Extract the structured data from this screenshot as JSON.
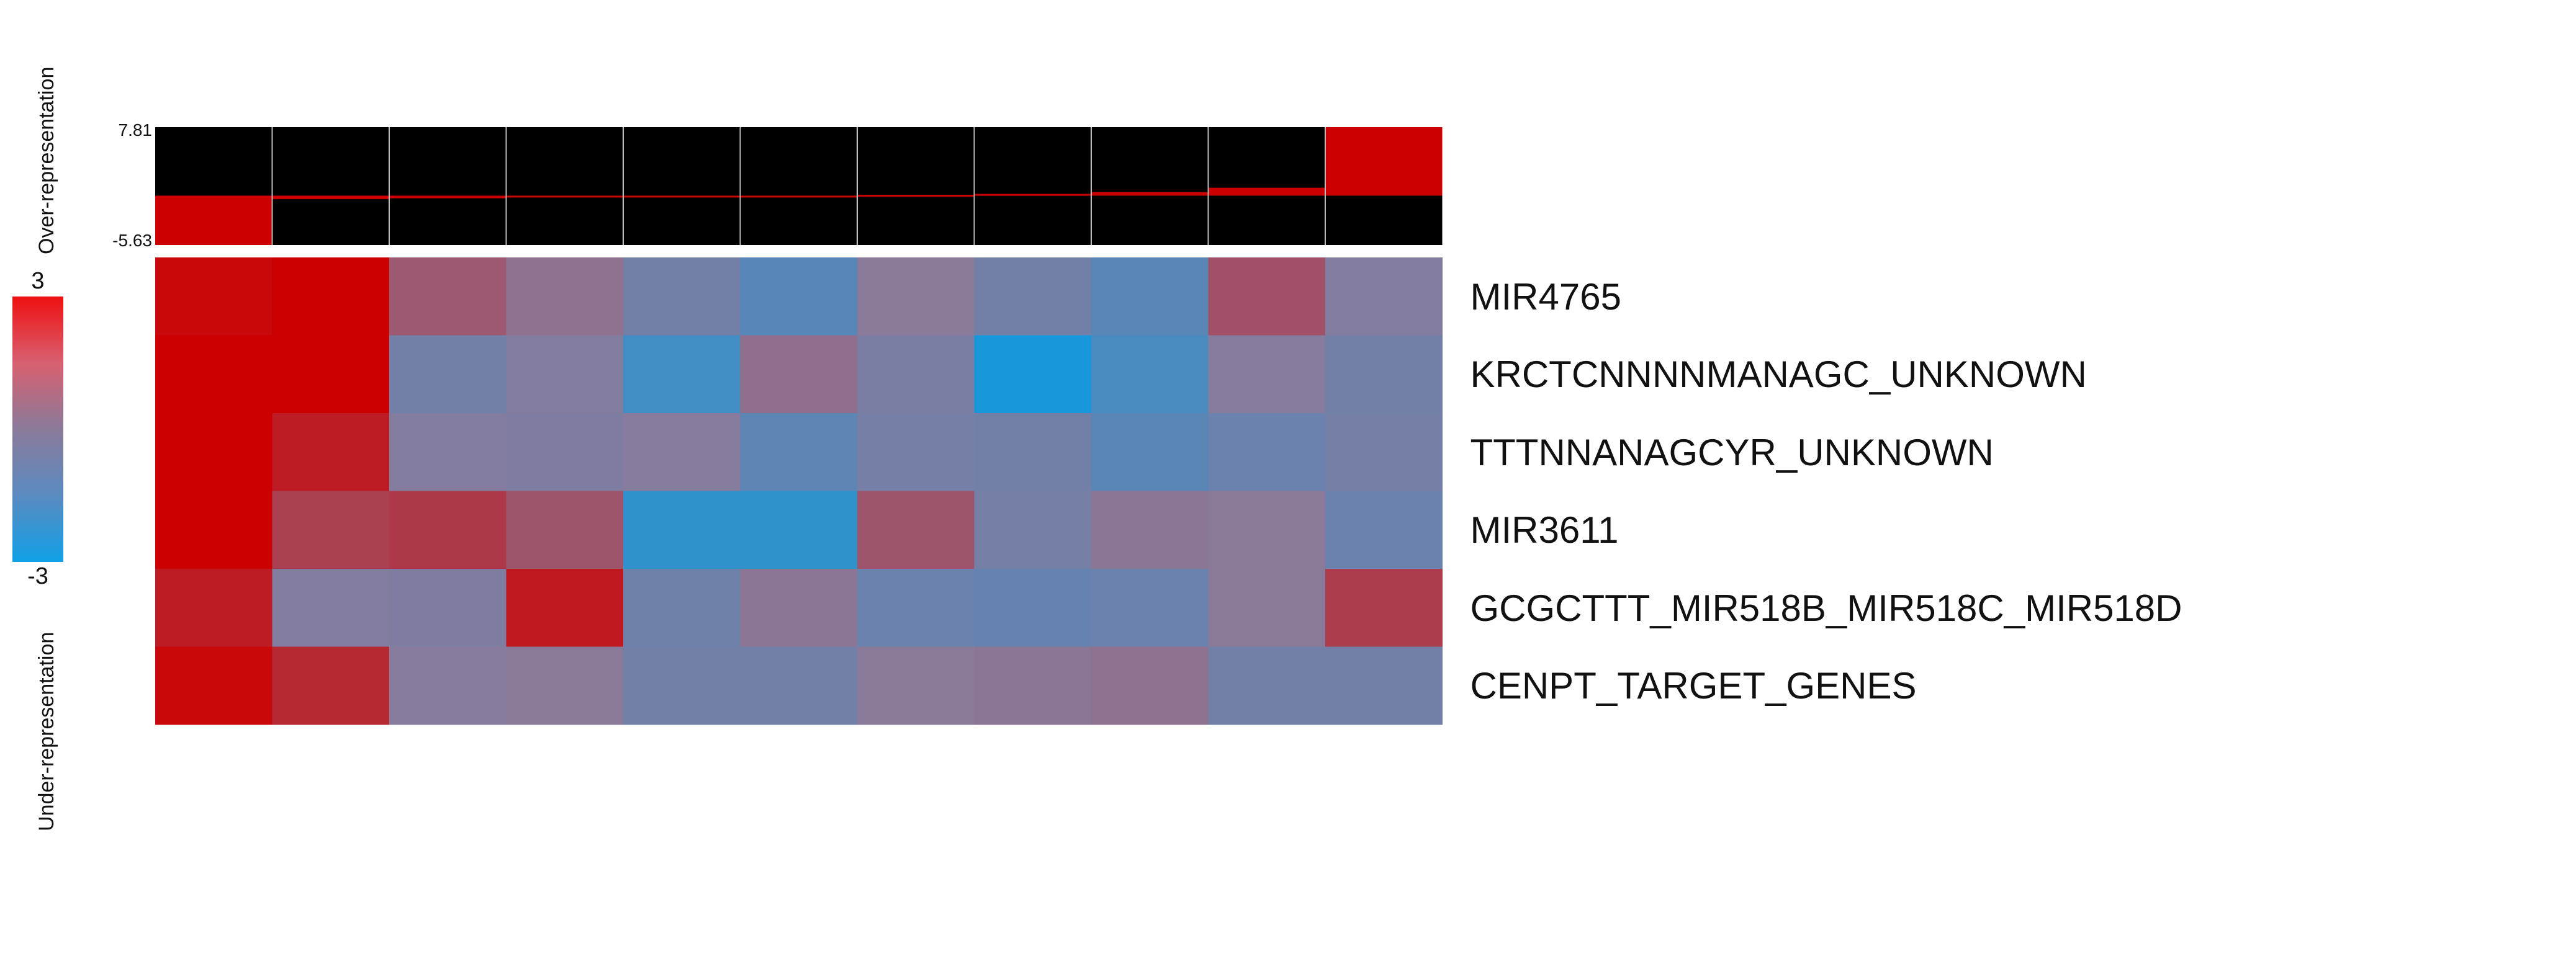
{
  "chart_data": {
    "type": "heatmap",
    "rows": [
      "MIR4765",
      "KRCTCNNNNMANAGC_UNKNOWN",
      "TTTNNANAGCYR_UNKNOWN",
      "MIR3611",
      "GCGCTTT_MIR518B_MIR518C_MIR518D",
      "CENPT_TARGET_GENES"
    ],
    "columns": 11,
    "values": [
      [
        2.8,
        3.0,
        0.8,
        0.2,
        -0.6,
        -1.3,
        0.0,
        -0.6,
        -1.2,
        1.0,
        -0.2
      ],
      [
        3.0,
        3.0,
        -0.6,
        -0.2,
        -1.8,
        0.3,
        -0.4,
        -2.8,
        -1.6,
        -0.1,
        -0.6
      ],
      [
        3.0,
        2.3,
        -0.2,
        -0.3,
        -0.1,
        -1.1,
        -0.5,
        -0.6,
        -1.2,
        -0.8,
        -0.5
      ],
      [
        3.0,
        1.4,
        1.6,
        0.9,
        -2.2,
        -2.2,
        0.9,
        -0.5,
        0.1,
        0.0,
        -0.8
      ],
      [
        2.3,
        -0.2,
        -0.3,
        2.4,
        -0.7,
        0.1,
        -0.8,
        -0.9,
        -0.8,
        0.0,
        1.5
      ],
      [
        2.8,
        2.0,
        -0.1,
        0.0,
        -0.6,
        -0.6,
        0.0,
        0.1,
        0.2,
        -0.6,
        -0.6
      ]
    ],
    "color_scale": {
      "min": -3,
      "max": 3,
      "low": "#1199e0",
      "mid": "#8a7a9a",
      "high": "#cc0000"
    },
    "legend": {
      "max_label": "3",
      "min_label": "-3"
    },
    "top_label": "Over-representation",
    "bottom_label": "Under-representation",
    "summary_track": {
      "max_label": "7.81",
      "min_label": "-5.63",
      "ylim": [
        -5.63,
        7.81
      ],
      "values": [
        -5.63,
        -0.4,
        -0.3,
        -0.2,
        -0.1,
        0.0,
        0.1,
        0.2,
        0.4,
        0.9,
        7.81
      ],
      "bar_color": "#cc0000",
      "background": "#000000"
    }
  }
}
